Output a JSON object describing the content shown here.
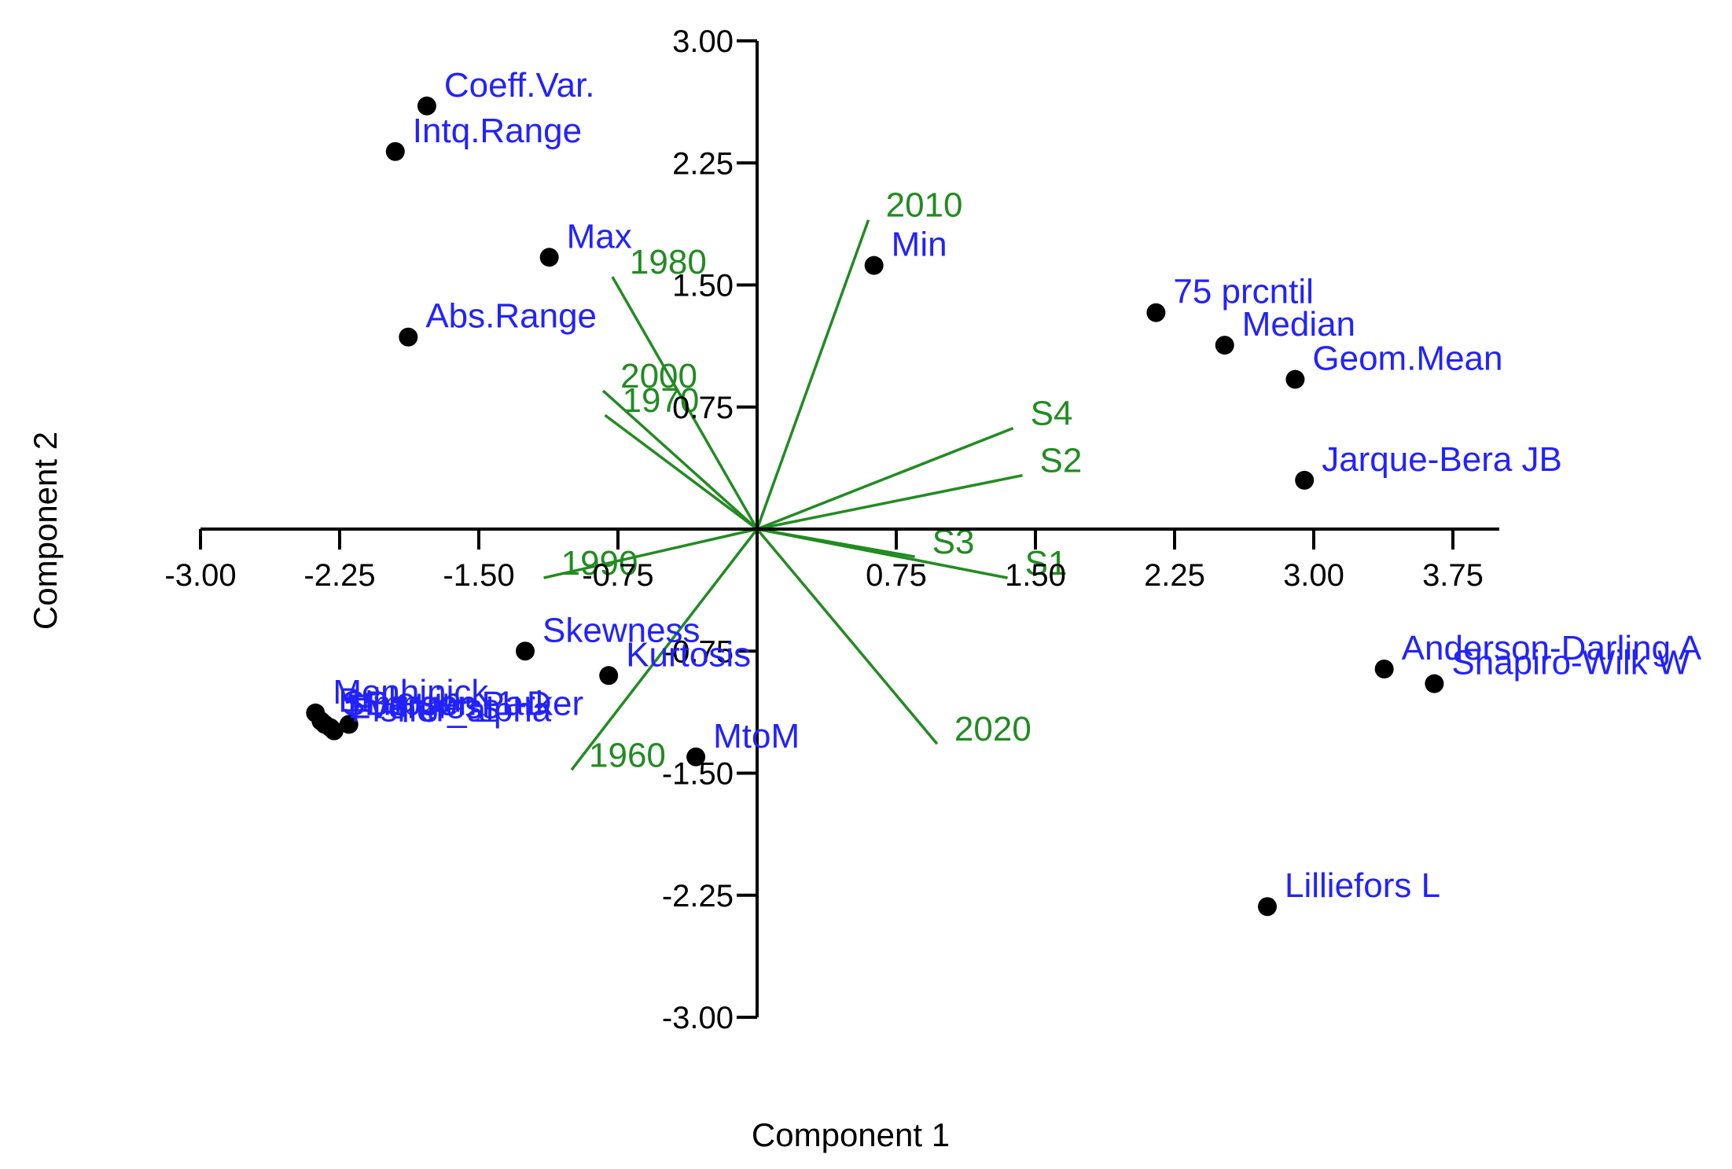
{
  "chart_data": {
    "type": "scatter",
    "title": "",
    "xlabel": "Component 1",
    "ylabel": "Component 2",
    "xlim": [
      -3.0,
      4.0
    ],
    "ylim": [
      -3.0,
      3.0
    ],
    "xticks": [
      -3.0,
      -2.25,
      -1.5,
      -0.75,
      0.75,
      1.5,
      2.25,
      3.0,
      3.75
    ],
    "xtick_labels": [
      "-3.00",
      "-2.25",
      "-1.50",
      "-0.75",
      "0.75",
      "1.50",
      "2.25",
      "3.00",
      "3.75"
    ],
    "yticks": [
      3.0,
      2.25,
      1.5,
      0.75,
      -0.75,
      -1.5,
      -2.25,
      -3.0
    ],
    "ytick_labels": [
      "3.00",
      "2.25",
      "1.50",
      "0.75",
      "-0.75",
      "-1.50",
      "-2.25",
      "-3.00"
    ],
    "point_color": "#000000",
    "label_color": "#2222ff",
    "vector_color": "#228b22",
    "points": [
      {
        "label": "Coeff.Var.",
        "x": -1.78,
        "y": 2.6
      },
      {
        "label": "Intq.Range",
        "x": -1.95,
        "y": 2.32
      },
      {
        "label": "Max",
        "x": -1.12,
        "y": 1.67
      },
      {
        "label": "Abs.Range",
        "x": -1.88,
        "y": 1.18
      },
      {
        "label": "Min",
        "x": 0.63,
        "y": 1.62
      },
      {
        "label": "75 prcntil",
        "x": 2.15,
        "y": 1.33
      },
      {
        "label": "Median",
        "x": 2.52,
        "y": 1.13
      },
      {
        "label": "Geom.Mean",
        "x": 2.9,
        "y": 0.92
      },
      {
        "label": "Jarque-Bera JB",
        "x": 2.95,
        "y": 0.3
      },
      {
        "label": "Skewness",
        "x": -1.25,
        "y": -0.75
      },
      {
        "label": "Kurtosis",
        "x": -0.8,
        "y": -0.9
      },
      {
        "label": "Menhinick",
        "x": -2.38,
        "y": -1.13
      },
      {
        "label": "Berger-Parker",
        "x": -2.2,
        "y": -1.2
      },
      {
        "label": "Brillouin",
        "x": -2.35,
        "y": -1.18
      },
      {
        "label": "Simpson_1-D",
        "x": -2.33,
        "y": -1.2
      },
      {
        "label": "Evenness",
        "x": -2.3,
        "y": -1.22
      },
      {
        "label": "Fisher_alpha",
        "x": -2.28,
        "y": -1.24
      },
      {
        "label": "MtoM",
        "x": -0.33,
        "y": -1.4
      },
      {
        "label": "Anderson-Darling A",
        "x": 3.38,
        "y": -0.86
      },
      {
        "label": "Shapiro-Wilk W",
        "x": 3.65,
        "y": -0.95
      },
      {
        "label": "Lilliefors L",
        "x": 2.75,
        "y": -2.32
      }
    ],
    "vectors": [
      {
        "label": "2010",
        "x": 0.6,
        "y": 1.9
      },
      {
        "label": "1980",
        "x": -0.78,
        "y": 1.55
      },
      {
        "label": "2000",
        "x": -0.83,
        "y": 0.85
      },
      {
        "label": "1970",
        "x": -0.82,
        "y": 0.7
      },
      {
        "label": "S4",
        "x": 1.38,
        "y": 0.62
      },
      {
        "label": "S2",
        "x": 1.43,
        "y": 0.33
      },
      {
        "label": "S3",
        "x": 0.85,
        "y": -0.17
      },
      {
        "label": "S1",
        "x": 1.35,
        "y": -0.3
      },
      {
        "label": "1990",
        "x": -1.15,
        "y": -0.3
      },
      {
        "label": "1960",
        "x": -1.0,
        "y": -1.48
      },
      {
        "label": "2020",
        "x": 0.97,
        "y": -1.32
      }
    ]
  }
}
